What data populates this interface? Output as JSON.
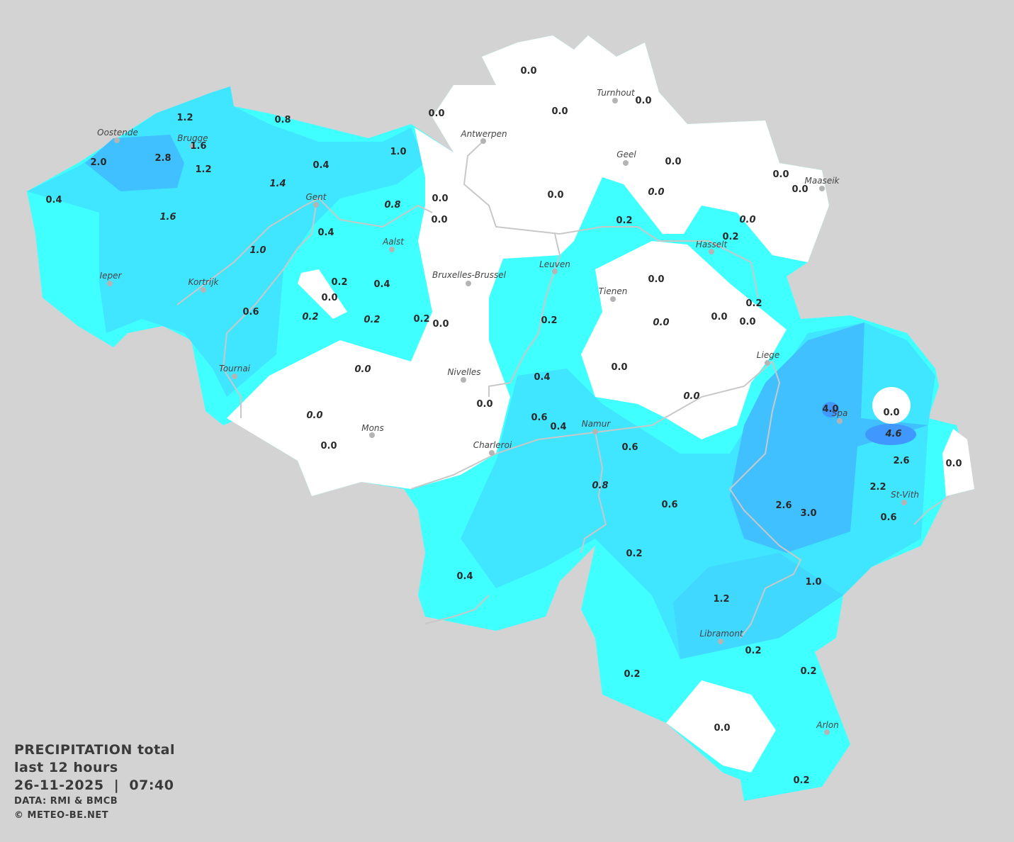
{
  "title": {
    "line1": "PRECIPITATION total",
    "line2": "last 12 hours",
    "datetime": "26-11-2025  |  07:40",
    "source": "DATA: RMI & BMCB",
    "copyright": "© METEO-BE.NET"
  },
  "colors": {
    "background": "#d3d3d3",
    "dry": "#ffffff",
    "light": "#40ffff",
    "moderate": "#40e6ff",
    "heavy": "#40c0ff",
    "very_heavy": "#4098ff",
    "rivers": "#c8c8c8"
  },
  "unit": "mm",
  "cities": [
    "Oostende",
    "Brugge",
    "Gent",
    "Antwerpen",
    "Turnhout",
    "Geel",
    "Maaseik",
    "Hasselt",
    "Leuven",
    "Aalst",
    "Bruxelles-Brussel",
    "Tienen",
    "Ieper",
    "Kortrijk",
    "Tournai",
    "Nivelles",
    "Liege",
    "Spa",
    "Mons",
    "Namur",
    "Charleroi",
    "St-Vith",
    "Libramont",
    "Arlon"
  ],
  "values": [
    "0.0",
    "0.0",
    "0.0",
    "0.0",
    "1.2",
    "0.8",
    "2.8",
    "1.6",
    "2.0",
    "1.2",
    "0.4",
    "1.0",
    "0.4",
    "1.4",
    "1.6",
    "0.8",
    "0.0",
    "0.0",
    "0.0",
    "0.0",
    "0.0",
    "0.0",
    "0.0",
    "0.0",
    "0.2",
    "0.2",
    "0.4",
    "1.0",
    "0.2",
    "0.4",
    "0.0",
    "0.2",
    "0.2",
    "0.2",
    "0.0",
    "0.6",
    "0.2",
    "0.0",
    "0.0",
    "0.0",
    "0.0",
    "0.2",
    "0.0",
    "0.0",
    "0.4",
    "0.0",
    "0.0",
    "0.0",
    "0.0",
    "0.6",
    "0.4",
    "0.6",
    "0.8",
    "0.6",
    "4.0",
    "0.0",
    "4.6",
    "2.6",
    "0.0",
    "2.2",
    "2.6",
    "3.0",
    "0.6",
    "0.2",
    "0.4",
    "1.0",
    "1.2",
    "0.2",
    "0.2",
    "0.2",
    "0.0",
    "0.2"
  ],
  "italic_values": [
    13,
    14,
    15,
    20,
    23,
    27,
    31,
    32,
    38,
    42,
    46,
    47,
    52,
    56
  ]
}
